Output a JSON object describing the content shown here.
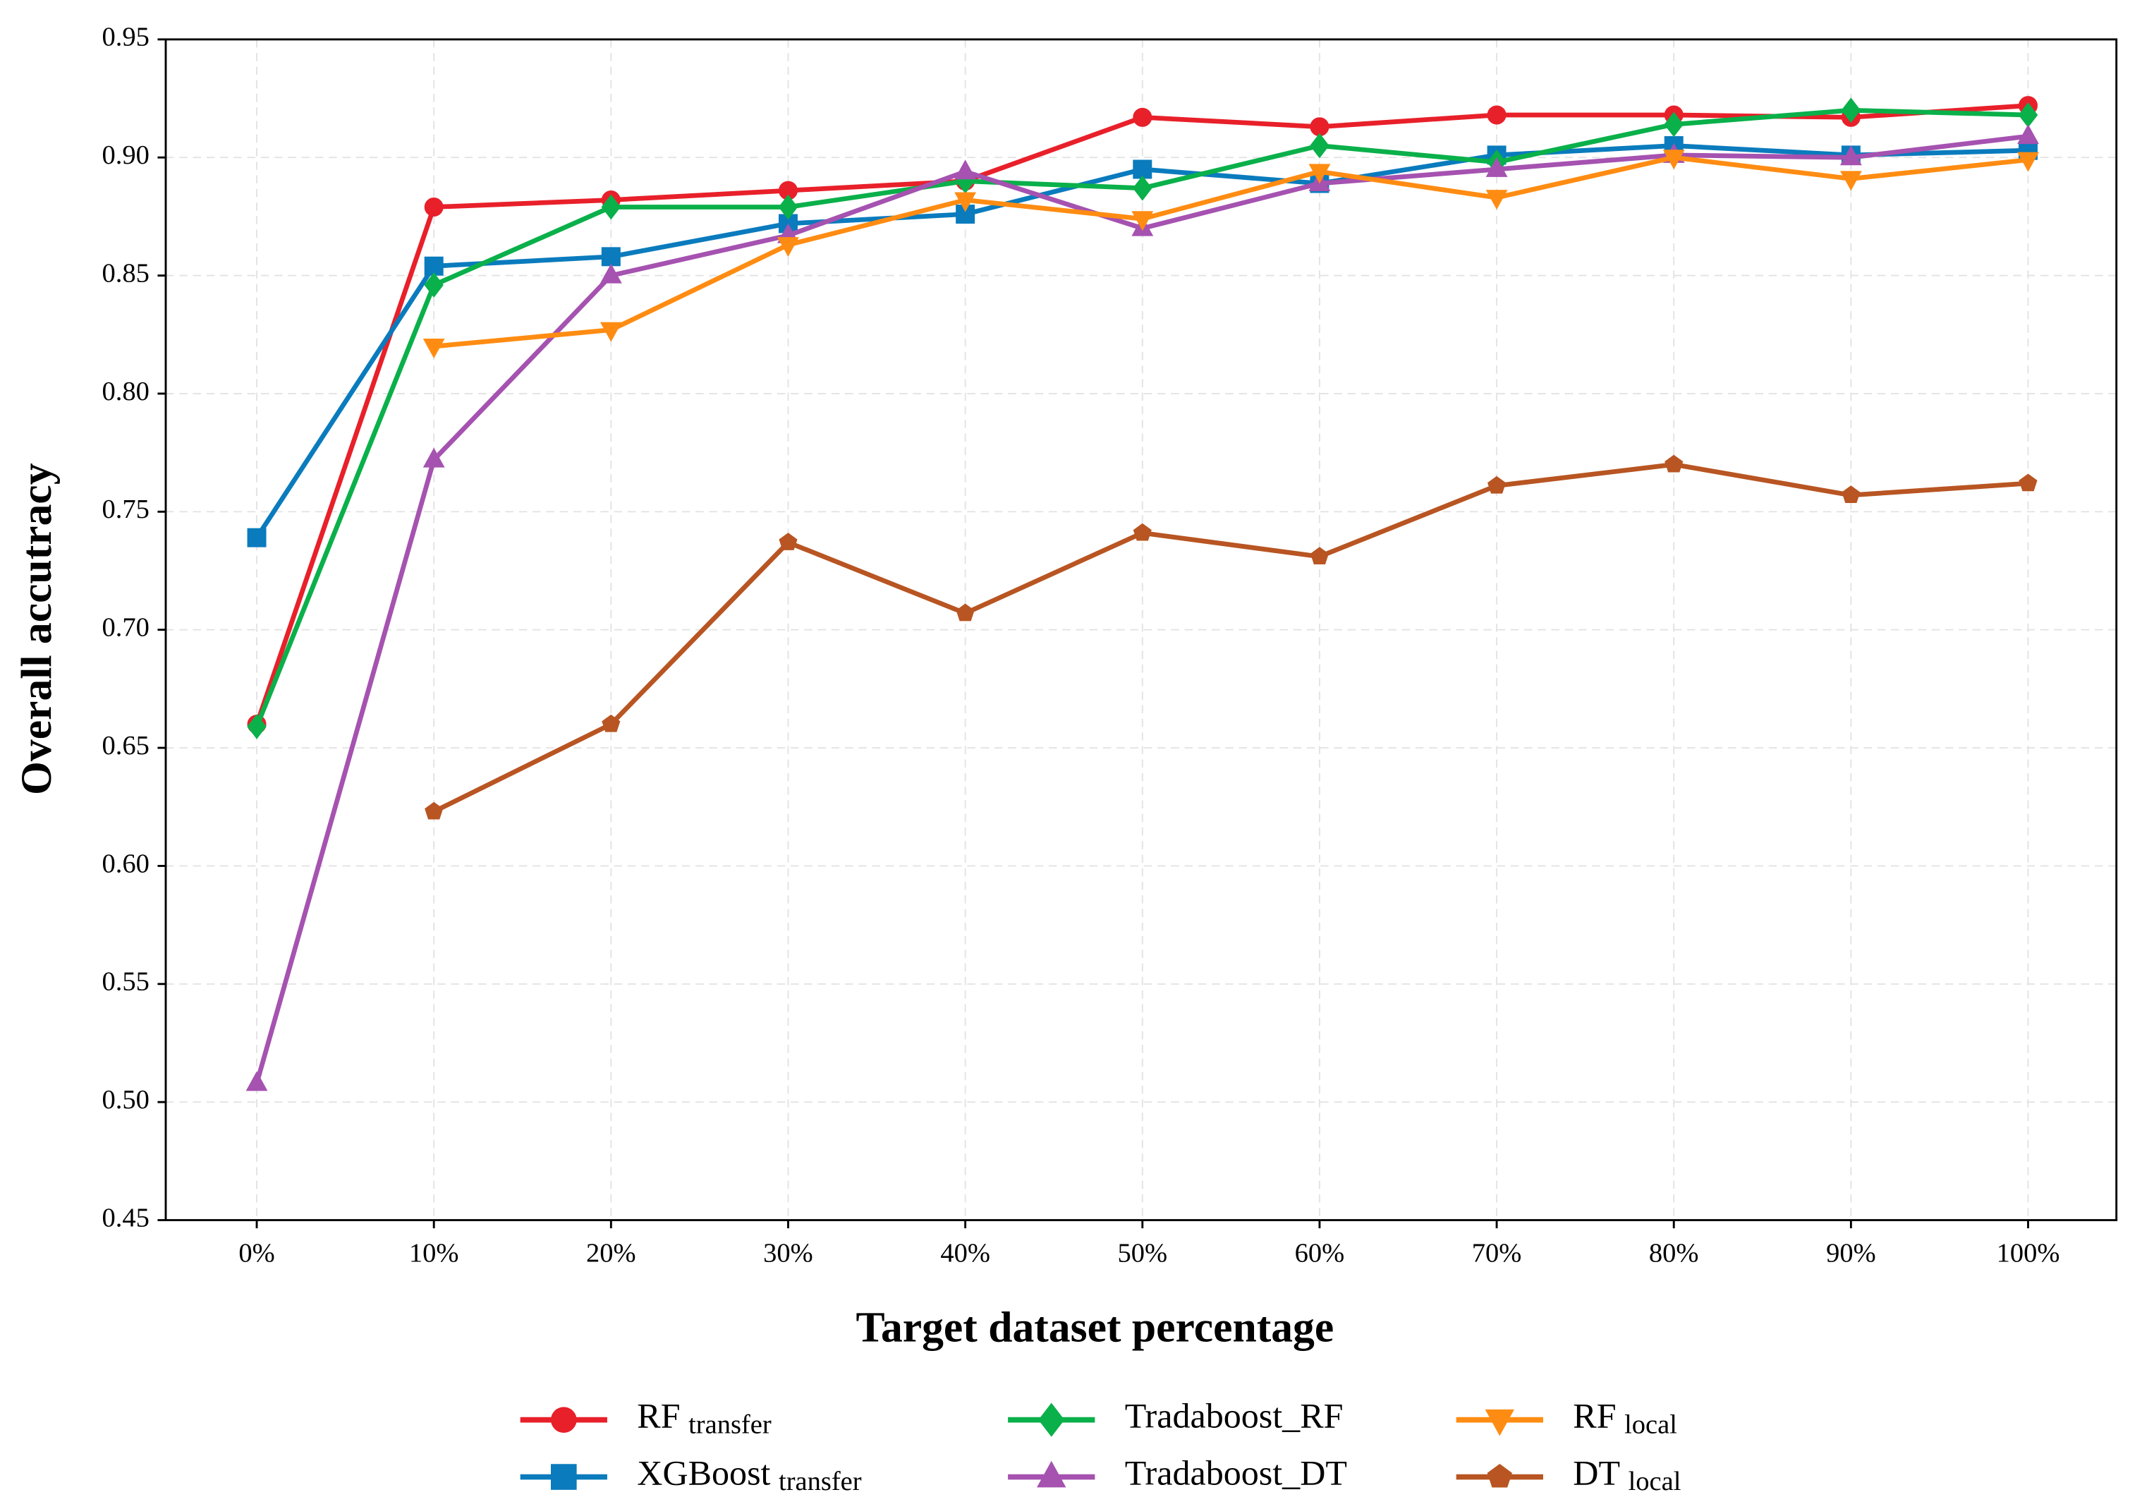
{
  "chart_data": {
    "type": "line",
    "x_label": "Target dataset percentage",
    "y_label": "Overall accutracy",
    "categories": [
      "0%",
      "10%",
      "20%",
      "30%",
      "40%",
      "50%",
      "60%",
      "70%",
      "80%",
      "90%",
      "100%"
    ],
    "ylim": [
      0.45,
      0.95
    ],
    "yticks": [
      0.45,
      {
        "value": 0.5,
        "label": "0.50"
      },
      0.55,
      {
        "value": 0.6,
        "label": "0.60"
      },
      0.65,
      {
        "value": 0.7,
        "label": "0.70"
      },
      0.75,
      {
        "value": 0.8,
        "label": "0.80"
      },
      0.85,
      {
        "value": 0.9,
        "label": "0.90"
      },
      0.95
    ],
    "grid": true,
    "legend": "bottom",
    "series": [
      {
        "name": "RF",
        "subscript": "transfer",
        "color": "#e8202a",
        "marker": "circle",
        "values": [
          0.66,
          0.879,
          0.882,
          0.886,
          0.89,
          0.917,
          0.913,
          0.918,
          0.918,
          0.917,
          0.922
        ]
      },
      {
        "name": "XGBoost",
        "subscript": "transfer",
        "color": "#0a7bbd",
        "marker": "square",
        "values": [
          0.739,
          0.854,
          0.858,
          0.872,
          0.876,
          0.895,
          0.889,
          0.901,
          0.905,
          0.901,
          0.903
        ]
      },
      {
        "name": "Tradaboost_RF",
        "color": "#0ab04a",
        "marker": "diamond",
        "values": [
          0.659,
          0.846,
          0.879,
          0.879,
          0.89,
          0.887,
          0.905,
          0.898,
          0.914,
          0.92,
          0.918
        ]
      },
      {
        "name": "Tradaboost_DT",
        "color": "#a552b0",
        "marker": "triangle-up",
        "values": [
          0.508,
          0.772,
          0.85,
          0.867,
          0.894,
          0.87,
          0.889,
          0.895,
          0.901,
          0.9,
          0.909
        ]
      },
      {
        "name": "RF",
        "subscript": "local",
        "color": "#ff8c12",
        "marker": "triangle-down",
        "values": [
          null,
          0.82,
          0.827,
          0.863,
          0.882,
          0.874,
          0.894,
          0.883,
          0.9,
          0.891,
          0.899
        ]
      },
      {
        "name": "DT",
        "subscript": "local",
        "color": "#b85522",
        "marker": "pentagon",
        "values": [
          null,
          0.623,
          0.66,
          0.737,
          0.707,
          0.741,
          0.731,
          0.761,
          0.77,
          0.757,
          0.762
        ]
      }
    ]
  }
}
